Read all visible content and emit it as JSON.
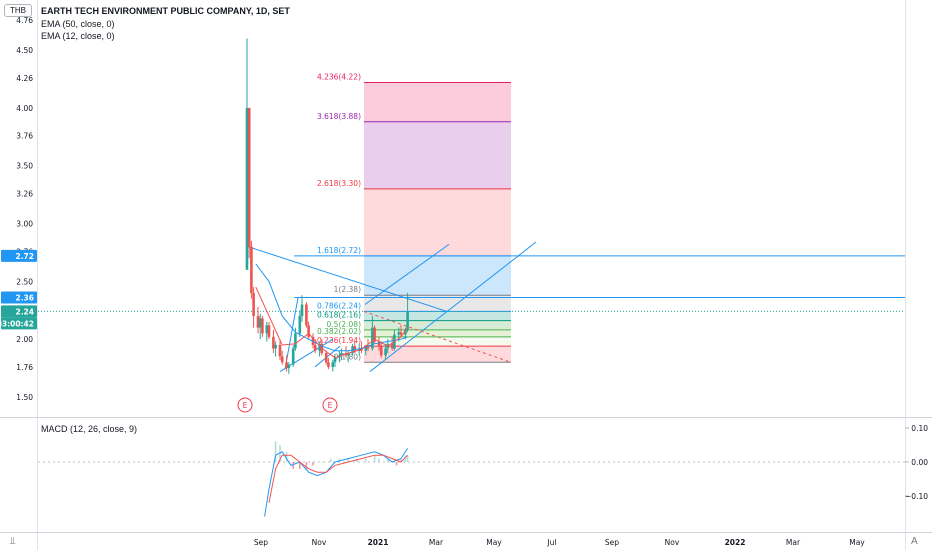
{
  "header": {
    "currency": "THB",
    "title": "EARTH TECH ENVIRONMENT PUBLIC COMPANY, 1D, SET",
    "indicators": [
      "EMA (50, close, 0)",
      "EMA (12, close, 0)"
    ],
    "macd_label": "MACD (12, 26, close, 9)"
  },
  "price_axis": {
    "ticks": [
      "4.76",
      "4.50",
      "4.26",
      "4.00",
      "3.76",
      "3.50",
      "3.26",
      "3.00",
      "2.76",
      "2.50",
      "2.26",
      "2.00",
      "1.76",
      "1.50"
    ],
    "badges": [
      {
        "text": "2.72",
        "color": "#2196f3"
      },
      {
        "text": "2.36",
        "color": "#2196f3"
      },
      {
        "text": "2.24",
        "color": "#26a69a"
      },
      {
        "text": "03:00:42",
        "color": "#26a69a"
      }
    ]
  },
  "macd_axis": {
    "ticks": [
      "0.10",
      "0.00",
      "−0.10"
    ]
  },
  "time_axis": {
    "labels": [
      "Sep",
      "Nov",
      "2021",
      "Mar",
      "May",
      "Jul",
      "Sep",
      "Nov",
      "2022",
      "Mar",
      "May"
    ]
  },
  "earnings_markers": [
    "E",
    "E"
  ],
  "fib_levels": [
    {
      "label": "4.236(4.22)",
      "value": 4.22,
      "color": "#e91e63"
    },
    {
      "label": "3.618(3.88)",
      "value": 3.88,
      "color": "#9c27b0"
    },
    {
      "label": "2.618(3.30)",
      "value": 3.3,
      "color": "#f23645"
    },
    {
      "label": "1.618(2.72)",
      "value": 2.72,
      "color": "#2196f3"
    },
    {
      "label": "1(2.38)",
      "value": 2.38,
      "color": "#787b86"
    },
    {
      "label": "0.786(2.24)",
      "value": 2.24,
      "color": "#2196f3"
    },
    {
      "label": "0.618(2.16)",
      "value": 2.16,
      "color": "#089981"
    },
    {
      "label": "0.5(2.08)",
      "value": 2.08,
      "color": "#4caf50"
    },
    {
      "label": "0.382(2.02)",
      "value": 2.02,
      "color": "#4caf50"
    },
    {
      "label": "0.236(1.94)",
      "value": 1.94,
      "color": "#f23645"
    },
    {
      "label": "0(1.80)",
      "value": 1.8,
      "color": "#787b86"
    }
  ],
  "footer": {
    "tz_icon": "tradingview-logo-icon",
    "auto_label": "A"
  },
  "colors": {
    "up": "#26a69a",
    "down": "#ef5350",
    "accent": "#2196f3",
    "ema50": "#2196f3",
    "ema12": "#ef5350"
  },
  "chart_data": {
    "type": "candlestick",
    "title": "EARTH TECH ENVIRONMENT PUBLIC COMPANY, 1D, SET",
    "price_range": [
      1.4,
      4.8
    ],
    "x_range_days": [
      0,
      780
    ],
    "candles_note": "approximate daily candles from listing (late Aug 2020) to mid Feb 2021",
    "candles": [
      [
        0,
        2.6,
        4.6,
        2.6,
        4.0
      ],
      [
        1,
        4.0,
        4.0,
        2.7,
        2.8
      ],
      [
        2,
        2.8,
        2.85,
        2.35,
        2.4
      ],
      [
        3,
        2.4,
        2.45,
        2.1,
        2.2
      ],
      [
        5,
        2.2,
        2.28,
        2.05,
        2.1
      ],
      [
        6,
        2.1,
        2.22,
        2.0,
        2.18
      ],
      [
        7,
        2.18,
        2.2,
        2.02,
        2.05
      ],
      [
        9,
        2.05,
        2.15,
        1.98,
        2.12
      ],
      [
        10,
        2.12,
        2.15,
        2.0,
        2.02
      ],
      [
        12,
        2.02,
        2.08,
        1.88,
        1.92
      ],
      [
        13,
        1.92,
        1.98,
        1.85,
        1.95
      ],
      [
        15,
        1.95,
        2.0,
        1.82,
        1.85
      ],
      [
        16,
        1.85,
        1.9,
        1.78,
        1.8
      ],
      [
        18,
        1.8,
        1.86,
        1.72,
        1.75
      ],
      [
        19,
        1.75,
        1.8,
        1.7,
        1.78
      ],
      [
        21,
        1.78,
        1.95,
        1.76,
        1.92
      ],
      [
        22,
        1.92,
        2.1,
        1.9,
        2.05
      ],
      [
        24,
        2.05,
        2.25,
        2.02,
        2.2
      ],
      [
        25,
        2.2,
        2.38,
        2.15,
        2.3
      ],
      [
        27,
        2.3,
        2.32,
        2.1,
        2.12
      ],
      [
        28,
        2.12,
        2.15,
        2.0,
        2.02
      ],
      [
        30,
        2.02,
        2.05,
        1.92,
        1.95
      ],
      [
        31,
        1.95,
        2.0,
        1.88,
        1.9
      ],
      [
        33,
        1.9,
        1.98,
        1.85,
        1.96
      ],
      [
        34,
        1.96,
        2.0,
        1.86,
        1.88
      ],
      [
        36,
        1.88,
        1.9,
        1.78,
        1.8
      ],
      [
        37,
        1.8,
        1.84,
        1.74,
        1.76
      ],
      [
        39,
        1.76,
        1.82,
        1.72,
        1.8
      ],
      [
        40,
        1.8,
        1.86,
        1.76,
        1.84
      ],
      [
        42,
        1.84,
        1.9,
        1.8,
        1.86
      ],
      [
        43,
        1.86,
        1.92,
        1.82,
        1.88
      ],
      [
        45,
        1.88,
        1.94,
        1.84,
        1.86
      ],
      [
        46,
        1.86,
        1.9,
        1.8,
        1.88
      ],
      [
        48,
        1.88,
        1.96,
        1.86,
        1.94
      ],
      [
        49,
        1.94,
        1.98,
        1.88,
        1.9
      ],
      [
        51,
        1.9,
        1.96,
        1.86,
        1.92
      ],
      [
        52,
        1.92,
        1.98,
        1.88,
        1.9
      ],
      [
        54,
        1.9,
        1.95,
        1.86,
        1.94
      ],
      [
        55,
        1.94,
        2.0,
        1.9,
        1.92
      ],
      [
        57,
        1.92,
        2.2,
        1.9,
        2.1
      ],
      [
        58,
        2.1,
        2.12,
        1.96,
        1.98
      ],
      [
        60,
        1.98,
        2.02,
        1.9,
        1.94
      ],
      [
        61,
        1.94,
        1.98,
        1.84,
        1.86
      ],
      [
        63,
        1.86,
        1.96,
        1.82,
        1.92
      ],
      [
        64,
        1.92,
        2.0,
        1.88,
        1.96
      ],
      [
        66,
        1.96,
        2.02,
        1.9,
        1.92
      ],
      [
        67,
        1.92,
        2.08,
        1.9,
        2.04
      ],
      [
        69,
        2.04,
        2.1,
        1.98,
        2.06
      ],
      [
        70,
        2.06,
        2.12,
        2.02,
        2.04
      ],
      [
        72,
        2.04,
        2.1,
        2.0,
        2.08
      ],
      [
        73,
        2.08,
        2.4,
        2.06,
        2.24
      ]
    ],
    "ema50": [
      [
        4,
        2.65
      ],
      [
        10,
        2.5
      ],
      [
        16,
        2.2
      ],
      [
        22,
        2.06
      ],
      [
        28,
        2.0
      ],
      [
        34,
        1.94
      ],
      [
        40,
        1.9
      ],
      [
        46,
        1.9
      ],
      [
        52,
        1.92
      ],
      [
        58,
        1.96
      ],
      [
        64,
        1.98
      ],
      [
        70,
        2.0
      ],
      [
        73,
        2.02
      ]
    ],
    "ema12": [
      [
        4,
        2.45
      ],
      [
        10,
        2.2
      ],
      [
        16,
        1.95
      ],
      [
        22,
        1.96
      ],
      [
        28,
        2.05
      ],
      [
        34,
        1.92
      ],
      [
        40,
        1.84
      ],
      [
        46,
        1.88
      ],
      [
        52,
        1.91
      ],
      [
        58,
        2.0
      ],
      [
        64,
        1.94
      ],
      [
        70,
        2.02
      ],
      [
        73,
        2.1
      ]
    ],
    "macd": {
      "range": [
        -0.17,
        0.13
      ],
      "macd_line": [
        [
          8,
          -0.16
        ],
        [
          10,
          -0.08
        ],
        [
          13,
          0.02
        ],
        [
          16,
          0.03
        ],
        [
          20,
          -0.01
        ],
        [
          24,
          0.0
        ],
        [
          28,
          -0.03
        ],
        [
          32,
          -0.04
        ],
        [
          36,
          -0.03
        ],
        [
          40,
          0.0
        ],
        [
          46,
          0.01
        ],
        [
          52,
          0.02
        ],
        [
          58,
          0.03
        ],
        [
          62,
          0.02
        ],
        [
          66,
          0.0
        ],
        [
          70,
          0.01
        ],
        [
          73,
          0.04
        ]
      ],
      "signal_line": [
        [
          10,
          -0.12
        ],
        [
          13,
          -0.02
        ],
        [
          16,
          0.02
        ],
        [
          20,
          0.02
        ],
        [
          24,
          0.0
        ],
        [
          28,
          -0.02
        ],
        [
          32,
          -0.03
        ],
        [
          36,
          -0.03
        ],
        [
          40,
          -0.01
        ],
        [
          46,
          0.0
        ],
        [
          52,
          0.01
        ],
        [
          58,
          0.02
        ],
        [
          62,
          0.02
        ],
        [
          66,
          0.01
        ],
        [
          70,
          0.0
        ],
        [
          73,
          0.02
        ]
      ],
      "histogram": [
        [
          13,
          0.06
        ],
        [
          15,
          0.05
        ],
        [
          18,
          0.03
        ],
        [
          21,
          -0.02
        ],
        [
          24,
          -0.02
        ],
        [
          27,
          -0.02
        ],
        [
          30,
          -0.01
        ],
        [
          34,
          0.0
        ],
        [
          38,
          0.01
        ],
        [
          42,
          0.01
        ],
        [
          46,
          0.01
        ],
        [
          50,
          0.01
        ],
        [
          54,
          0.01
        ],
        [
          58,
          0.02
        ],
        [
          60,
          0.01
        ],
        [
          64,
          0.01
        ],
        [
          68,
          -0.01
        ],
        [
          70,
          0.01
        ],
        [
          72,
          0.02
        ],
        [
          73,
          0.02
        ]
      ]
    }
  }
}
